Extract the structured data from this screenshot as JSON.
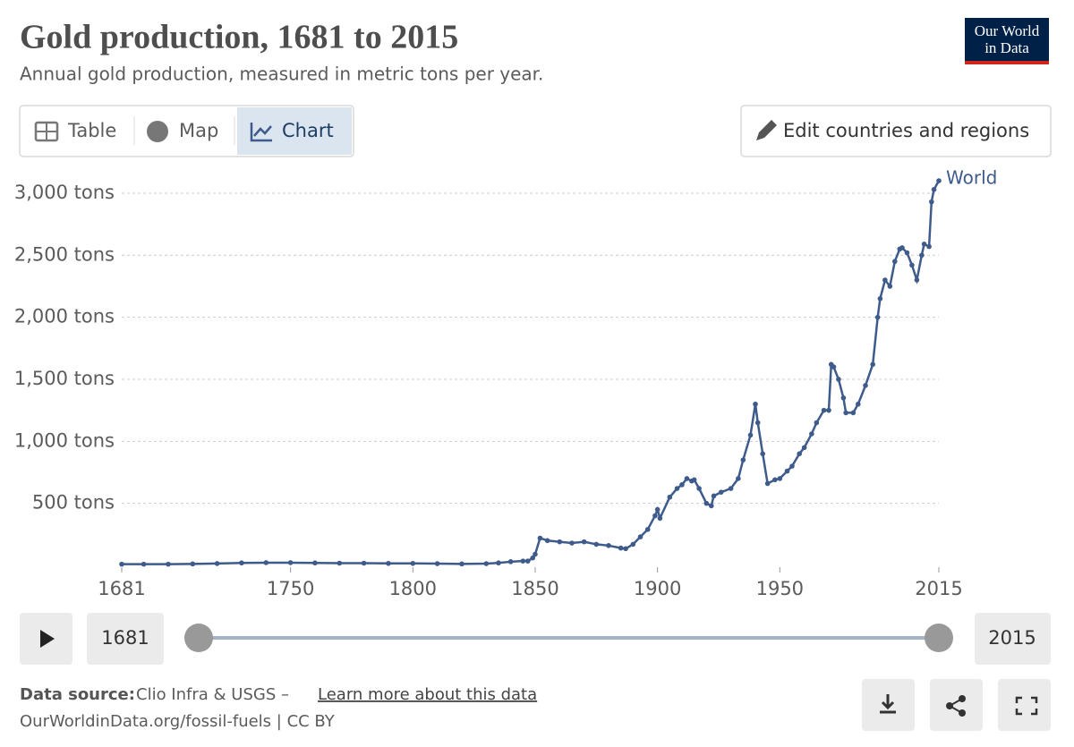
{
  "header": {
    "title": "Gold production, 1681 to 2015",
    "subtitle": "Annual gold production, measured in metric tons per year.",
    "logo": [
      "Our World",
      "in Data"
    ]
  },
  "controls": {
    "tabs": [
      "Table",
      "Map",
      "Chart"
    ],
    "edit": "Edit countries and regions"
  },
  "chart_data": {
    "type": "line",
    "grid": true,
    "grid_style": "dashed",
    "xlim": [
      1681,
      2015
    ],
    "xticks": [
      1681,
      1750,
      1800,
      1850,
      1900,
      1950,
      2015
    ],
    "ylim": [
      0,
      3115
    ],
    "yticks": [
      {
        "value": 500,
        "label": "500 tons"
      },
      {
        "value": 1000,
        "label": "1,000 tons"
      },
      {
        "value": 1500,
        "label": "1,500 tons"
      },
      {
        "value": 2000,
        "label": "2,000 tons"
      },
      {
        "value": 2500,
        "label": "2,500 tons"
      },
      {
        "value": 3000,
        "label": "3,000 tons"
      }
    ],
    "x": [
      1681,
      1690,
      1700,
      1710,
      1720,
      1730,
      1740,
      1750,
      1760,
      1770,
      1780,
      1790,
      1800,
      1810,
      1820,
      1830,
      1835,
      1840,
      1845,
      1847,
      1849,
      1850,
      1852,
      1855,
      1860,
      1865,
      1870,
      1875,
      1880,
      1885,
      1887,
      1890,
      1893,
      1896,
      1899,
      1900,
      1901,
      1905,
      1908,
      1910,
      1912,
      1914,
      1915,
      1917,
      1920,
      1922,
      1923,
      1926,
      1930,
      1933,
      1935,
      1938,
      1940,
      1941,
      1943,
      1945,
      1948,
      1950,
      1953,
      1955,
      1958,
      1960,
      1963,
      1965,
      1968,
      1970,
      1971,
      1972,
      1974,
      1976,
      1977,
      1980,
      1982,
      1985,
      1988,
      1990,
      1991,
      1993,
      1995,
      1997,
      1999,
      2000,
      2002,
      2004,
      2006,
      2008,
      2009,
      2011,
      2012,
      2013,
      2015
    ],
    "series": [
      {
        "name": "World",
        "color": "#3e5b8c",
        "values": [
          10,
          10,
          10,
          12,
          15,
          20,
          22,
          22,
          20,
          18,
          18,
          16,
          16,
          14,
          12,
          14,
          20,
          30,
          35,
          35,
          60,
          90,
          220,
          200,
          190,
          180,
          190,
          170,
          160,
          140,
          135,
          170,
          230,
          290,
          400,
          450,
          380,
          550,
          620,
          650,
          700,
          680,
          690,
          620,
          500,
          480,
          560,
          590,
          620,
          700,
          850,
          1050,
          1300,
          1150,
          900,
          660,
          690,
          700,
          760,
          800,
          900,
          950,
          1060,
          1150,
          1250,
          1250,
          1620,
          1600,
          1500,
          1350,
          1230,
          1230,
          1300,
          1450,
          1620,
          2000,
          2150,
          2300,
          2250,
          2450,
          2550,
          2560,
          2520,
          2420,
          2300,
          2500,
          2590,
          2570,
          2930,
          3030,
          3100
        ]
      }
    ]
  },
  "timeline": {
    "start": "1681",
    "end": "2015"
  },
  "footer": {
    "source_label": "Data source:",
    "source": "Clio Infra & USGS –",
    "learn_more": "Learn more about this data",
    "url": "OurWorldinData.org/fossil-fuels | CC BY"
  }
}
